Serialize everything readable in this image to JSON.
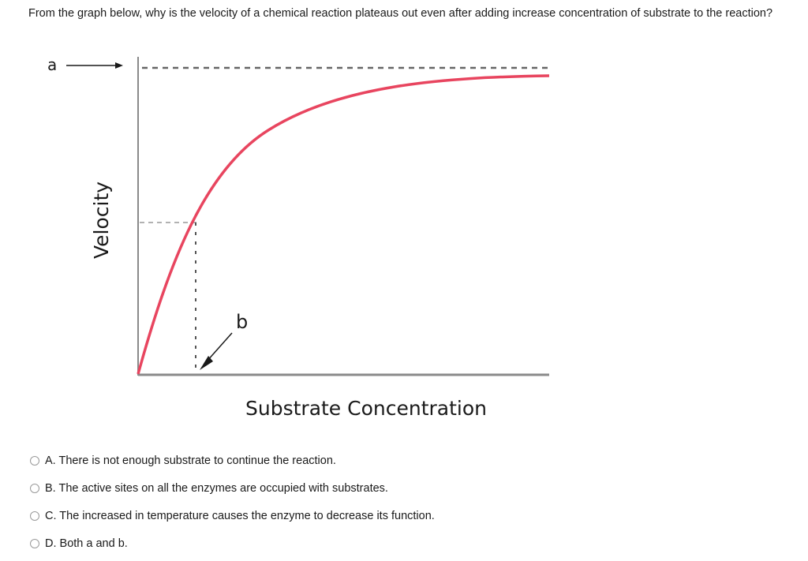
{
  "question": {
    "text": "From the graph below, why is the velocity of a chemical reaction plateaus out even after adding increase concentration of substrate to the reaction?"
  },
  "figure": {
    "label_a": "a",
    "label_b": "b",
    "y_axis_label": "Velocity",
    "x_axis_label": "Substrate Concentration",
    "curve_color": "#e8455f",
    "axis_color": "#8a8a8a"
  },
  "choices": [
    {
      "letter": "A.",
      "text": "A. There is not enough substrate to continue the reaction."
    },
    {
      "letter": "B.",
      "text": "B. The active sites on all the enzymes are occupied with substrates."
    },
    {
      "letter": "C.",
      "text": "C. The increased in temperature causes the enzyme to decrease its function."
    },
    {
      "letter": "D.",
      "text": "D. Both a and b."
    }
  ]
}
